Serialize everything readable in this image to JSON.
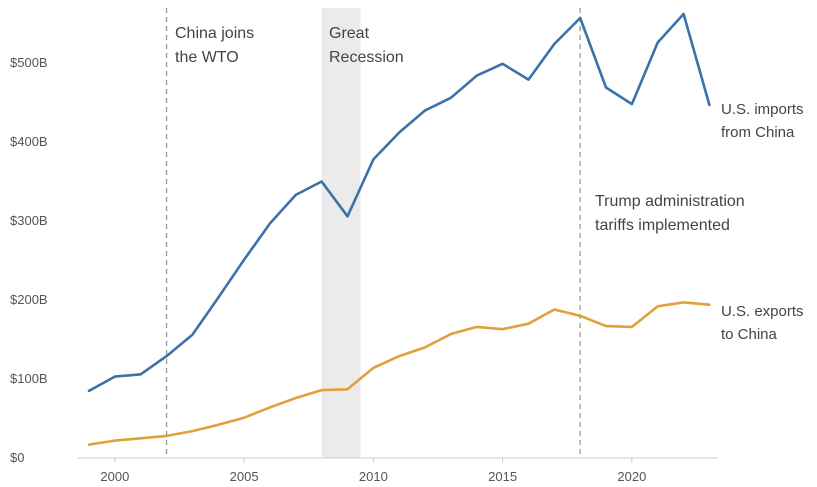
{
  "chart_data": {
    "type": "line",
    "title": "",
    "xlabel": "",
    "ylabel": "",
    "xlim": [
      1999,
      2023
    ],
    "ylim": [
      0,
      560
    ],
    "x_ticks": [
      2000,
      2005,
      2010,
      2015,
      2020
    ],
    "x_tick_labels": [
      "2000",
      "2005",
      "2010",
      "2015",
      "2020"
    ],
    "y_ticks": [
      0,
      100,
      200,
      300,
      400,
      500
    ],
    "y_tick_labels": [
      "$0",
      "$100B",
      "$200B",
      "$300B",
      "$400B",
      "$500B"
    ],
    "grid": false,
    "x": [
      1999,
      2000,
      2001,
      2002,
      2003,
      2004,
      2005,
      2006,
      2007,
      2008,
      2009,
      2010,
      2011,
      2012,
      2013,
      2014,
      2015,
      2016,
      2017,
      2018,
      2019,
      2020,
      2021,
      2022,
      2023
    ],
    "series": [
      {
        "name": "U.S. imports from China",
        "label_lines": [
          "U.S. imports",
          "from China"
        ],
        "color": "#3b73a9",
        "values": [
          85,
          103,
          106,
          129,
          156,
          203,
          251,
          297,
          333,
          350,
          306,
          378,
          412,
          440,
          456,
          484,
          499,
          479,
          524,
          557,
          469,
          448,
          526,
          562,
          447
        ]
      },
      {
        "name": "U.S. exports to China",
        "label_lines": [
          "U.S. exports",
          "to China"
        ],
        "color": "#e0a13c",
        "values": [
          17,
          22,
          25,
          28,
          34,
          42,
          51,
          64,
          76,
          86,
          87,
          114,
          129,
          140,
          157,
          166,
          163,
          170,
          188,
          180,
          167,
          166,
          192,
          197,
          194
        ]
      }
    ],
    "annotations": {
      "wto": {
        "x": 2002,
        "lines": [
          "China joins",
          "the WTO"
        ]
      },
      "recession": {
        "x_start": 2008,
        "x_end": 2009.5,
        "lines": [
          "Great",
          "Recession"
        ]
      },
      "tariffs": {
        "x": 2018,
        "lines": [
          "Trump administration",
          "tariffs implemented"
        ]
      }
    }
  }
}
